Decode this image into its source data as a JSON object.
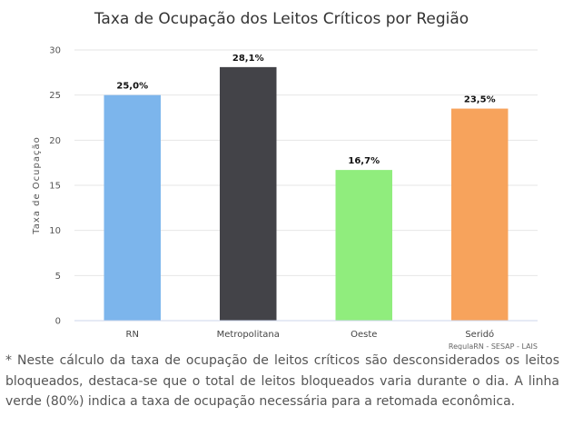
{
  "chart_data": {
    "type": "bar",
    "title": "Taxa de Ocupação dos Leitos Críticos por Região",
    "ylabel": "Taxa de Ocupação",
    "xlabel": "",
    "ylim": [
      0,
      30
    ],
    "yticks": [
      "0",
      "5",
      "10",
      "15",
      "20",
      "25",
      "30"
    ],
    "grid": true,
    "legend": "none",
    "categories": [
      "RN",
      "Metropolitana",
      "Oeste",
      "Seridó"
    ],
    "values": [
      25.0,
      28.1,
      16.7,
      23.5
    ],
    "data_labels": [
      "25,0%",
      "28,1%",
      "16,7%",
      "23,5%"
    ],
    "colors": [
      "#7cb5ec",
      "#434348",
      "#90ed7d",
      "#f7a35c"
    ],
    "credits": "RegulaRN - SESAP - LAIS"
  },
  "footnote": "* Neste cálculo da taxa de ocupação de leitos críticos são desconsiderados os leitos bloqueados, destaca-se que o total de leitos bloqueados varia durante o dia. A linha verde (80%) indica a taxa de ocupação necessária para a retomada econômica."
}
